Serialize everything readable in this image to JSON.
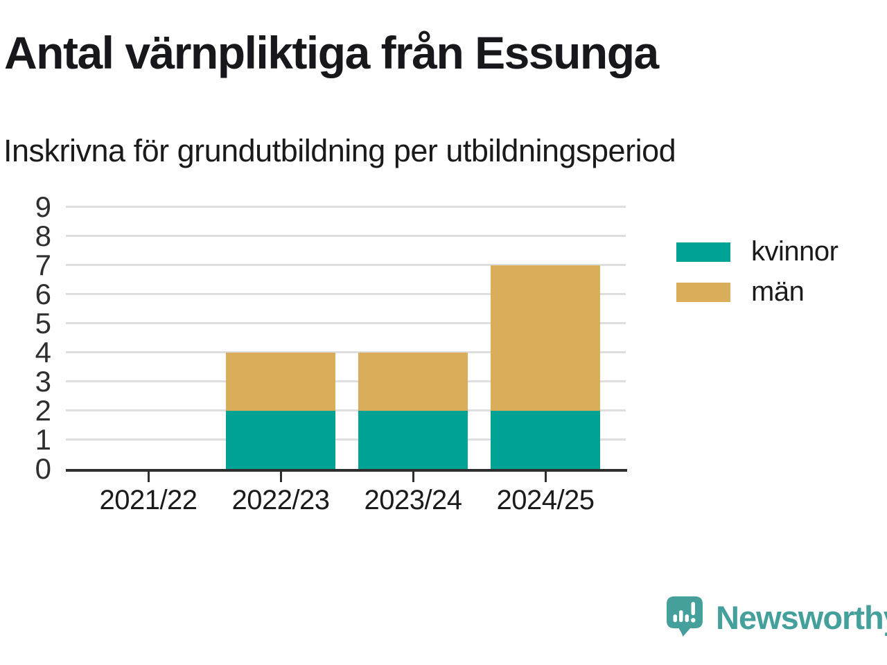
{
  "header": {
    "title": "Antal värnpliktiga från Essunga",
    "subtitle": "Inskrivna för grundutbildning per utbildningsperiod"
  },
  "chart_data": {
    "type": "bar",
    "stacked": true,
    "title": "Antal värnpliktiga från Essunga",
    "subtitle": "Inskrivna för grundutbildning per utbildningsperiod",
    "categories": [
      "2021/22",
      "2022/23",
      "2023/24",
      "2024/25"
    ],
    "series": [
      {
        "name": "kvinnor",
        "color": "#00A296",
        "values": [
          0,
          2,
          2,
          2
        ]
      },
      {
        "name": "män",
        "color": "#D9AD5A",
        "values": [
          0,
          2,
          2,
          5
        ]
      }
    ],
    "xlabel": "",
    "ylabel": "",
    "ylim": [
      0,
      9
    ],
    "yticks": [
      0,
      1,
      2,
      3,
      4,
      5,
      6,
      7,
      8,
      9
    ],
    "grid": true,
    "legend_position": "right"
  },
  "footer": {
    "brand": "Newsworthy",
    "brand_color": "#45A09B"
  },
  "colors": {
    "text": "#17171c",
    "axis": "#2e2e2e",
    "gridline": "#dedede"
  }
}
